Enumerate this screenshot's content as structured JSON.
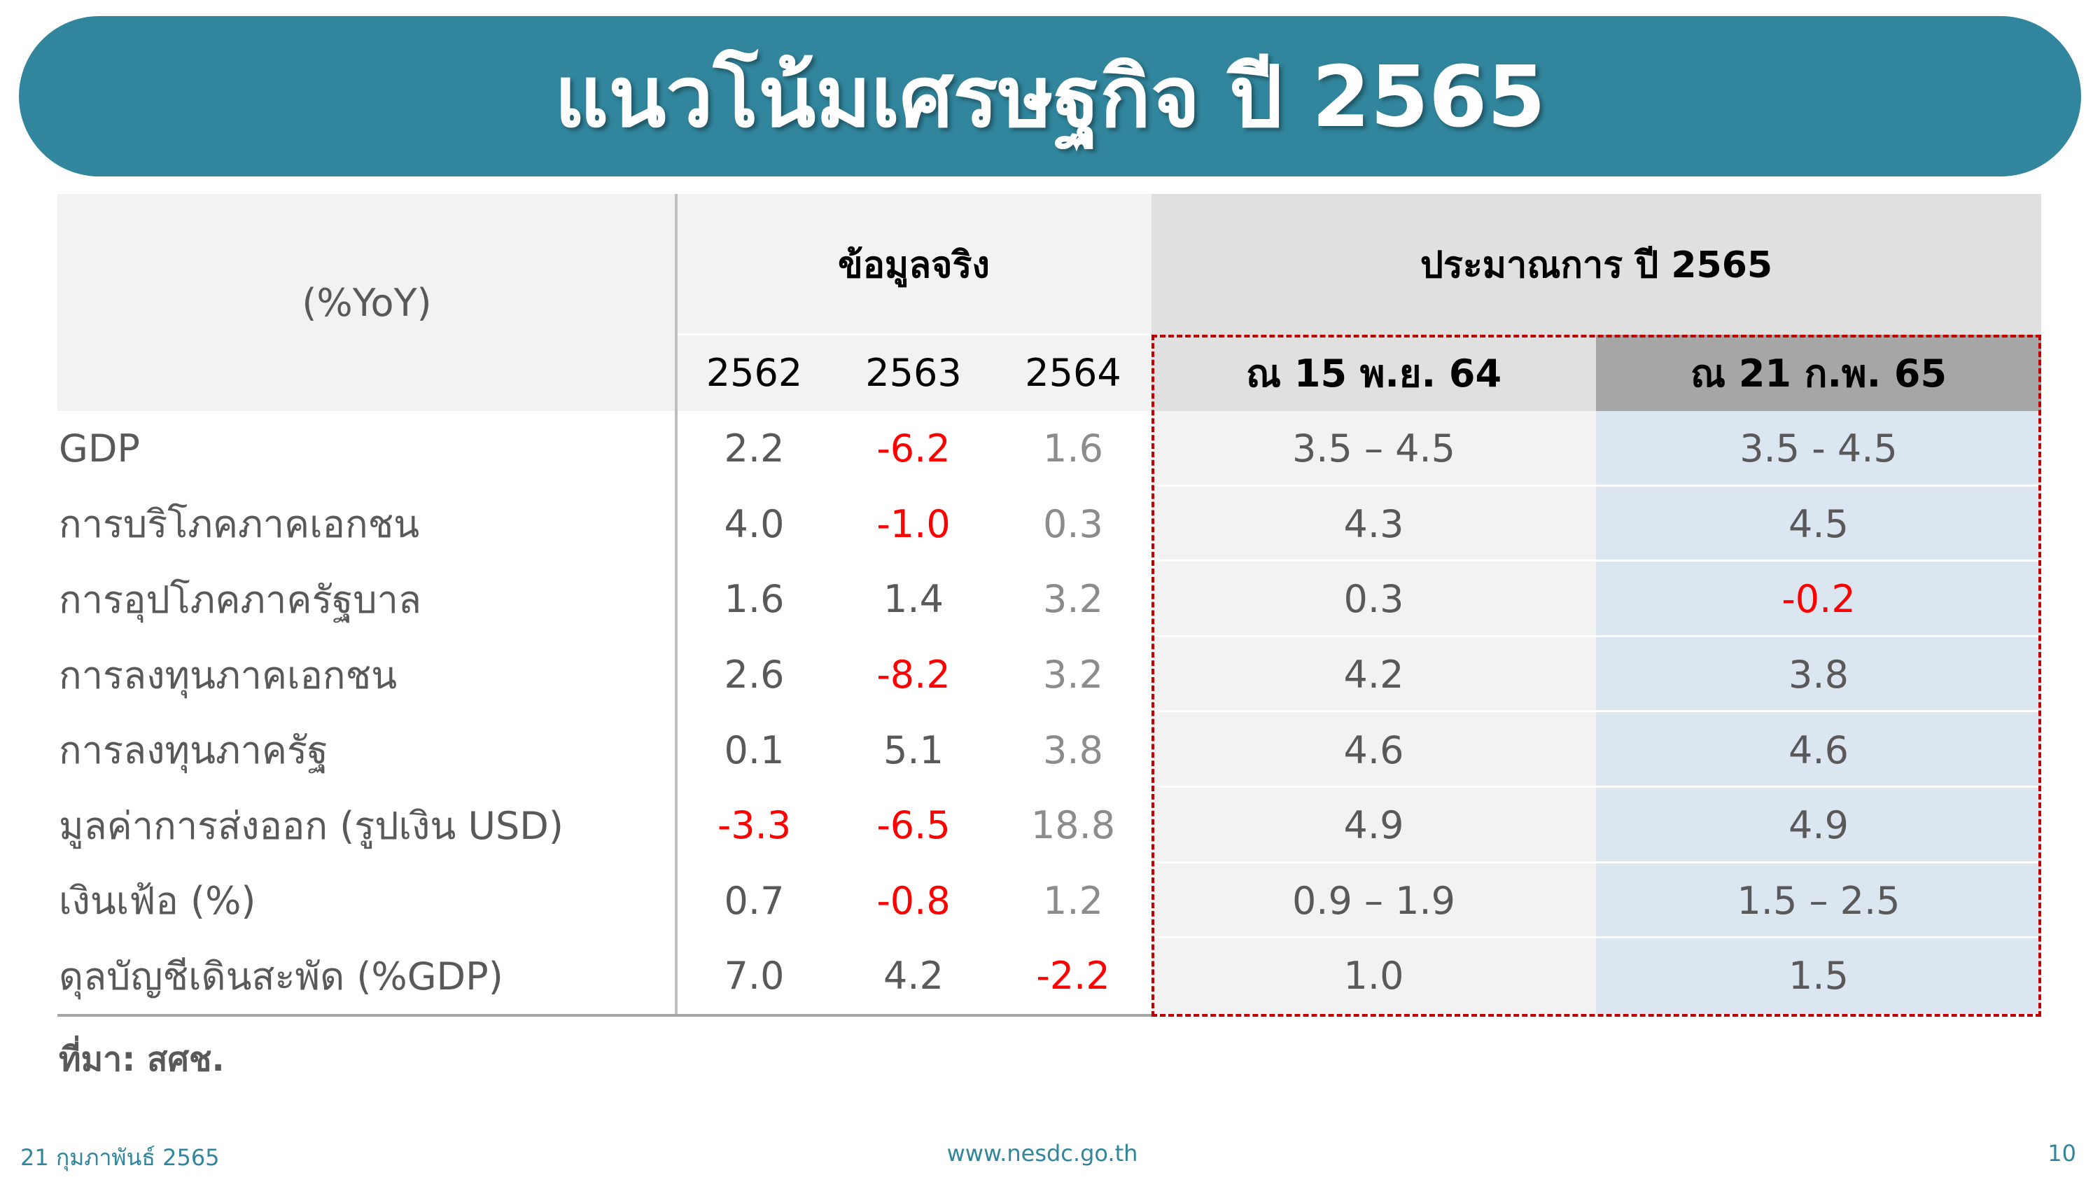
{
  "header": {
    "title": "แนวโน้มเศรษฐกิจ ปี 2565"
  },
  "table": {
    "unit": "(%YoY)",
    "group_actual": "ข้อมูลจริง",
    "group_forecast": "ประมาณการ ปี 2565",
    "columns": [
      "2562",
      "2563",
      "2564",
      "ณ 15 พ.ย. 64",
      "ณ 21 ก.พ. 65"
    ],
    "rows": [
      {
        "label": "GDP",
        "values": [
          "2.2",
          "-6.2",
          "1.6",
          "3.5 – 4.5",
          "3.5 - 4.5"
        ]
      },
      {
        "label": "การบริโภคภาคเอกชน",
        "values": [
          "4.0",
          "-1.0",
          "0.3",
          "4.3",
          "4.5"
        ]
      },
      {
        "label": "การอุปโภคภาครัฐบาล",
        "values": [
          "1.6",
          "1.4",
          "3.2",
          "0.3",
          "-0.2"
        ]
      },
      {
        "label": "การลงทุนภาคเอกชน",
        "values": [
          "2.6",
          "-8.2",
          "3.2",
          "4.2",
          "3.8"
        ]
      },
      {
        "label": "การลงทุนภาครัฐ",
        "values": [
          "0.1",
          "5.1",
          "3.8",
          "4.6",
          "4.6"
        ]
      },
      {
        "label": "มูลค่าการส่งออก (รูปเงิน USD)",
        "values": [
          "-3.3",
          "-6.5",
          "18.8",
          "4.9",
          "4.9"
        ]
      },
      {
        "label": "เงินเฟ้อ (%)",
        "values": [
          "0.7",
          "-0.8",
          "1.2",
          "0.9 – 1.9",
          "1.5 – 2.5"
        ]
      },
      {
        "label": "ดุลบัญชีเดินสะพัด (%GDP)",
        "values": [
          "7.0",
          "4.2",
          "-2.2",
          "1.0",
          "1.5"
        ]
      }
    ]
  },
  "source": "ที่มา: สศช.",
  "footer": {
    "date": "21 กุมภาพันธ์ 2565",
    "url": "www.nesdc.go.th",
    "page": "10"
  }
}
